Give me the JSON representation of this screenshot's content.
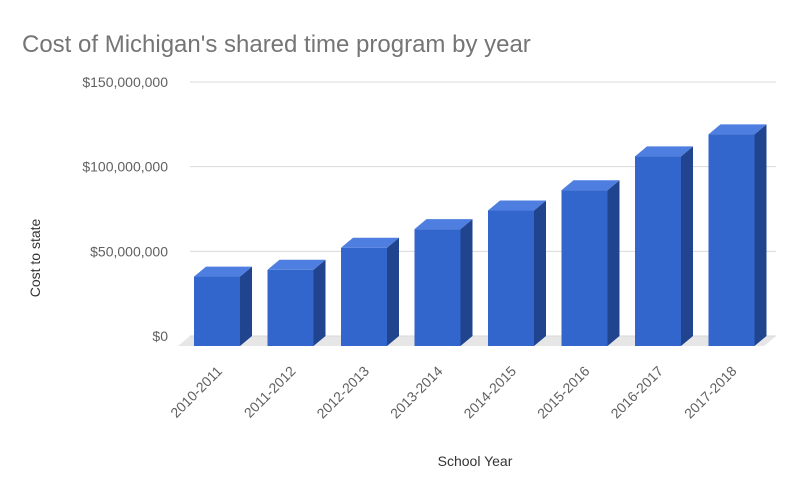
{
  "chart_data": {
    "type": "bar",
    "title": "Cost of Michigan's shared time program by year",
    "xlabel": "School Year",
    "ylabel": "Cost to state",
    "categories": [
      "2010-2011",
      "2011-2012",
      "2012-2013",
      "2013-2014",
      "2014-2015",
      "2015-2016",
      "2016-2017",
      "2017-2018"
    ],
    "values": [
      41000000,
      45000000,
      58000000,
      69000000,
      80000000,
      92000000,
      112000000,
      125000000
    ],
    "ylim": [
      0,
      150000000
    ],
    "yticks": [
      {
        "value": 0,
        "label": "$0"
      },
      {
        "value": 50000000,
        "label": "$50,000,000"
      },
      {
        "value": 100000000,
        "label": "$100,000,000"
      },
      {
        "value": 150000000,
        "label": "$150,000,000"
      }
    ],
    "style": "3d-bar",
    "grid": true,
    "legend": "none",
    "colors": {
      "bar_front": "#3366cc",
      "bar_top": "#4d7ee0",
      "bar_side": "#21448f",
      "floor": "#e6e6e6",
      "grid": "#d9d9d9"
    }
  }
}
